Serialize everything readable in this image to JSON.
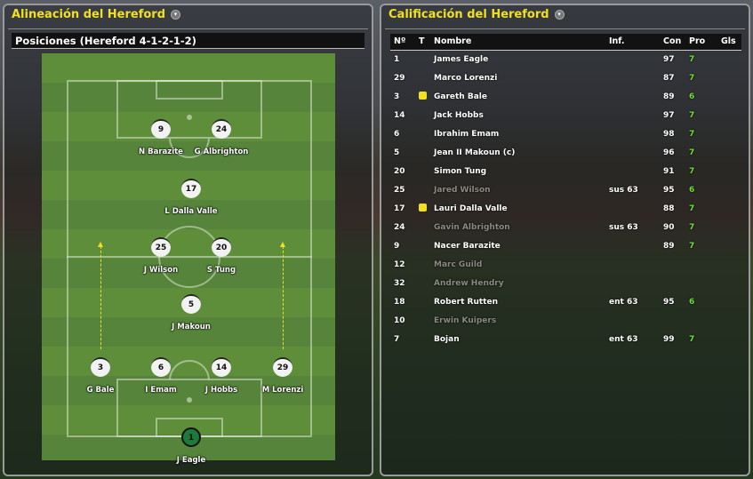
{
  "lineup_panel": {
    "title": "Alineación del Hereford",
    "subheader": "Posiciones (Hereford 4-1-2-1-2)",
    "players": [
      {
        "number": "9",
        "name": "N Barazite"
      },
      {
        "number": "24",
        "name": "G Albrighton"
      },
      {
        "number": "17",
        "name": "L Dalla Valle"
      },
      {
        "number": "25",
        "name": "J Wilson"
      },
      {
        "number": "20",
        "name": "S Tung"
      },
      {
        "number": "5",
        "name": "J Makoun"
      },
      {
        "number": "3",
        "name": "G Bale"
      },
      {
        "number": "6",
        "name": "I Emam"
      },
      {
        "number": "14",
        "name": "J Hobbs"
      },
      {
        "number": "29",
        "name": "M Lorenzi"
      },
      {
        "number": "1",
        "name": "J Eagle"
      }
    ]
  },
  "ratings_panel": {
    "title": "Calificación del Hereford",
    "columns": [
      "Nº",
      "T",
      "Nombre",
      "Inf.",
      "Con",
      "Pro",
      "Gls"
    ],
    "rows": [
      {
        "no": "1",
        "card": false,
        "name": "James Eagle",
        "inf": "",
        "con": "97",
        "pro": "7",
        "active": true
      },
      {
        "no": "29",
        "card": false,
        "name": "Marco Lorenzi",
        "inf": "",
        "con": "87",
        "pro": "7",
        "active": true
      },
      {
        "no": "3",
        "card": true,
        "name": "Gareth Bale",
        "inf": "",
        "con": "89",
        "pro": "6",
        "active": true
      },
      {
        "no": "14",
        "card": false,
        "name": "Jack Hobbs",
        "inf": "",
        "con": "97",
        "pro": "7",
        "active": true
      },
      {
        "no": "6",
        "card": false,
        "name": "Ibrahim Emam",
        "inf": "",
        "con": "98",
        "pro": "7",
        "active": true
      },
      {
        "no": "5",
        "card": false,
        "name": "Jean II Makoun (c)",
        "inf": "",
        "con": "96",
        "pro": "7",
        "active": true
      },
      {
        "no": "20",
        "card": false,
        "name": "Simon Tung",
        "inf": "",
        "con": "91",
        "pro": "7",
        "active": true
      },
      {
        "no": "25",
        "card": false,
        "name": "Jared Wilson",
        "inf": "sus 63",
        "con": "95",
        "pro": "6",
        "active": false
      },
      {
        "no": "17",
        "card": true,
        "name": "Lauri Dalla Valle",
        "inf": "",
        "con": "88",
        "pro": "7",
        "active": true
      },
      {
        "no": "24",
        "card": false,
        "name": "Gavin Albrighton",
        "inf": "sus 63",
        "con": "90",
        "pro": "7",
        "active": false
      },
      {
        "no": "9",
        "card": false,
        "name": "Nacer Barazite",
        "inf": "",
        "con": "89",
        "pro": "7",
        "active": true
      },
      {
        "no": "12",
        "card": false,
        "name": "Marc Guild",
        "inf": "",
        "con": "",
        "pro": "",
        "active": false
      },
      {
        "no": "32",
        "card": false,
        "name": "Andrew Hendry",
        "inf": "",
        "con": "",
        "pro": "",
        "active": false
      },
      {
        "no": "18",
        "card": false,
        "name": "Robert Rutten",
        "inf": "ent 63",
        "con": "95",
        "pro": "6",
        "active": true
      },
      {
        "no": "10",
        "card": false,
        "name": "Erwin Kuipers",
        "inf": "",
        "con": "",
        "pro": "",
        "active": false
      },
      {
        "no": "7",
        "card": false,
        "name": "Bojan",
        "inf": "ent 63",
        "con": "99",
        "pro": "7",
        "active": true
      }
    ]
  },
  "colors": {
    "title": "#f0e020",
    "rating": "#6ce030",
    "yellow_card": "#f0e020",
    "goalkeeper": "#1d7a3a"
  }
}
